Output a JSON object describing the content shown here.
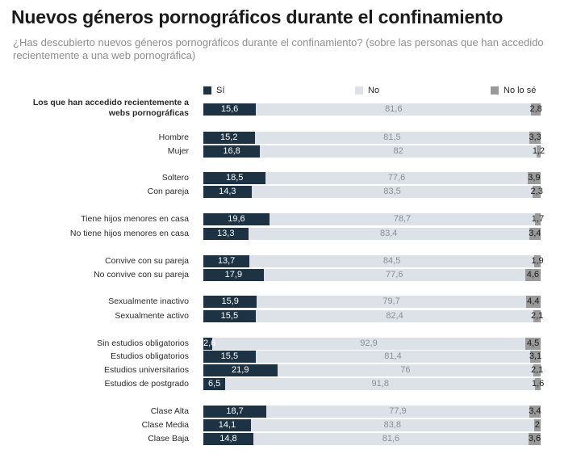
{
  "colors": {
    "si": "#1d3344",
    "no": "#dde2e8",
    "nose": "#9a9a9a"
  },
  "chart_data": {
    "type": "bar",
    "orientation": "horizontal",
    "stacked": true,
    "title": "Nuevos géneros pornográficos durante el confinamiento",
    "subtitle": "¿Has descubierto nuevos géneros pornográficos durante el confinamiento? (sobre las personas que han accedido recientemente a una web pornográfica)",
    "legend": [
      "Sí",
      "No",
      "No lo sé"
    ],
    "legend_position": "top",
    "rows": [
      {
        "label": "Los que han accedido recientemente a webs pornográficas",
        "si": 15.6,
        "no": 81.6,
        "nose": 2.8,
        "si_label": "15,6",
        "no_label": "81,6",
        "nose_label": "2,8"
      },
      {
        "label": "Hombre",
        "si": 15.2,
        "no": 81.5,
        "nose": 3.3,
        "si_label": "15,2",
        "no_label": "81,5",
        "nose_label": "3,3"
      },
      {
        "label": "Mujer",
        "si": 16.8,
        "no": 82,
        "nose": 1.2,
        "si_label": "16,8",
        "no_label": "82",
        "nose_label": "1,2"
      },
      {
        "label": "Soltero",
        "si": 18.5,
        "no": 77.6,
        "nose": 3.9,
        "si_label": "18,5",
        "no_label": "77,6",
        "nose_label": "3,9"
      },
      {
        "label": "Con pareja",
        "si": 14.3,
        "no": 83.5,
        "nose": 2.3,
        "si_label": "14,3",
        "no_label": "83,5",
        "nose_label": "2,3"
      },
      {
        "label": "Tiene hijos menores en casa",
        "si": 19.6,
        "no": 78.7,
        "nose": 1.7,
        "si_label": "19,6",
        "no_label": "78,7",
        "nose_label": "1,7"
      },
      {
        "label": "No tiene hijos menores en casa",
        "si": 13.3,
        "no": 83.4,
        "nose": 3.4,
        "si_label": "13,3",
        "no_label": "83,4",
        "nose_label": "3,4"
      },
      {
        "label": "Convive con su pareja",
        "si": 13.7,
        "no": 84.5,
        "nose": 1.9,
        "si_label": "13,7",
        "no_label": "84,5",
        "nose_label": "1,9"
      },
      {
        "label": "No convive con su pareja",
        "si": 17.9,
        "no": 77.6,
        "nose": 4.6,
        "si_label": "17,9",
        "no_label": "77,6",
        "nose_label": "4,6"
      },
      {
        "label": "Sexualmente inactivo",
        "si": 15.9,
        "no": 79.7,
        "nose": 4.4,
        "si_label": "15,9",
        "no_label": "79,7",
        "nose_label": "4,4"
      },
      {
        "label": "Sexualmente activo",
        "si": 15.5,
        "no": 82.4,
        "nose": 2.1,
        "si_label": "15,5",
        "no_label": "82,4",
        "nose_label": "2,1"
      },
      {
        "label": "Sin estudios obligatorios",
        "si": 2.6,
        "no": 92.9,
        "nose": 4.5,
        "si_label": "2,6",
        "no_label": "92,9",
        "nose_label": "4,5"
      },
      {
        "label": "Estudios obligatorios",
        "si": 15.5,
        "no": 81.4,
        "nose": 3.1,
        "si_label": "15,5",
        "no_label": "81,4",
        "nose_label": "3,1"
      },
      {
        "label": "Estudios universitarios",
        "si": 21.9,
        "no": 76,
        "nose": 2.1,
        "si_label": "21,9",
        "no_label": "76",
        "nose_label": "2,1"
      },
      {
        "label": "Estudios de postgrado",
        "si": 6.5,
        "no": 91.8,
        "nose": 1.6,
        "si_label": "6,5",
        "no_label": "91,8",
        "nose_label": "1,6"
      },
      {
        "label": "Clase Alta",
        "si": 18.7,
        "no": 77.9,
        "nose": 3.4,
        "si_label": "18,7",
        "no_label": "77,9",
        "nose_label": "3,4"
      },
      {
        "label": "Clase Media",
        "si": 14.1,
        "no": 83.8,
        "nose": 2,
        "si_label": "14,1",
        "no_label": "83,8",
        "nose_label": "2"
      },
      {
        "label": "Clase Baja",
        "si": 14.8,
        "no": 81.6,
        "nose": 3.6,
        "si_label": "14,8",
        "no_label": "81,6",
        "nose_label": "3,6"
      }
    ]
  }
}
